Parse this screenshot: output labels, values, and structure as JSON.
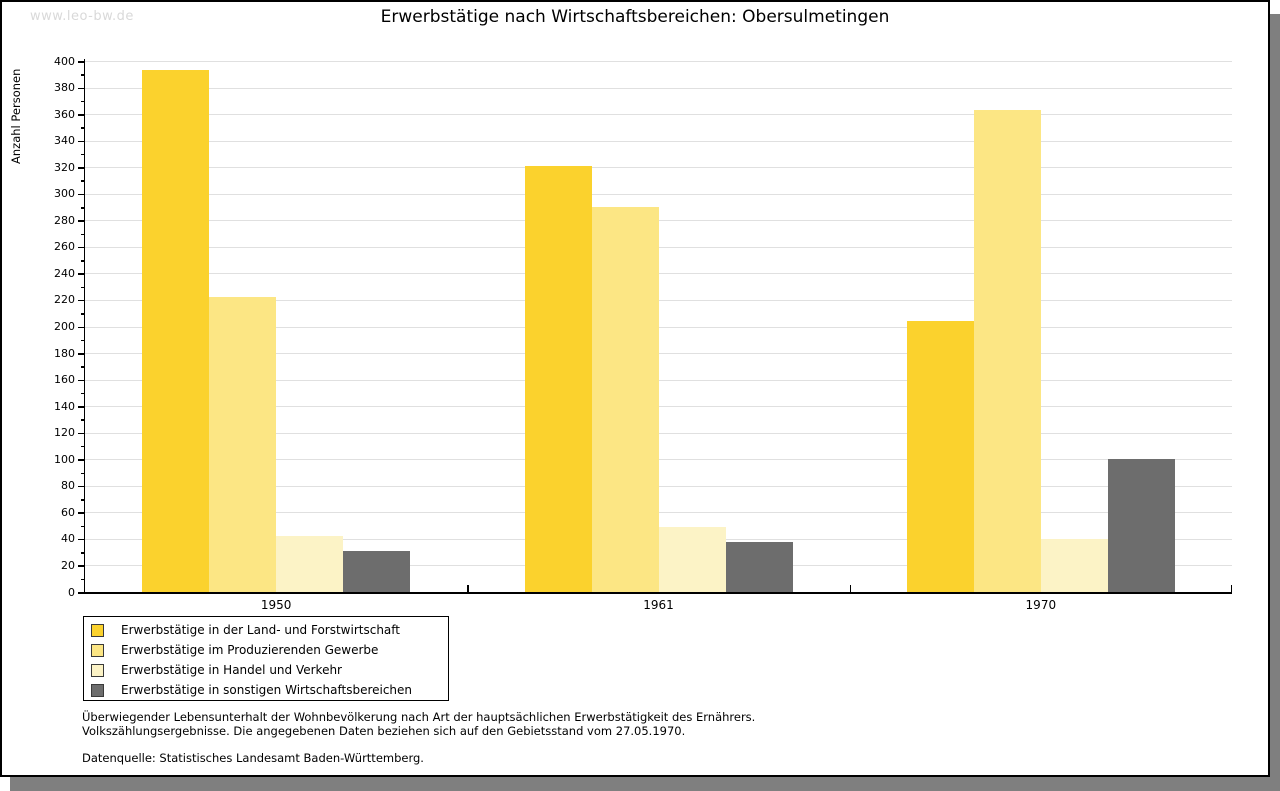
{
  "page": {
    "watermark": "www.leo-bw.de",
    "title": "Erwerbstätige nach Wirtschaftsbereichen: Obersulmetingen"
  },
  "chart_data": {
    "type": "bar",
    "title": "Erwerbstätige nach Wirtschaftsbereichen: Obersulmetingen",
    "ylabel": "Anzahl Personen",
    "xlabel": "",
    "categories": [
      "1950",
      "1961",
      "1970"
    ],
    "series": [
      {
        "name": "Erwerbstätige in der Land- und Forstwirtschaft",
        "color": "#FBD22D",
        "values": [
          393,
          321,
          204
        ]
      },
      {
        "name": "Erwerbstätige im Produzierenden Gewerbe",
        "color": "#FCE684",
        "values": [
          222,
          290,
          363
        ]
      },
      {
        "name": "Erwerbstätige in Handel und Verkehr",
        "color": "#FCF3C6",
        "values": [
          42,
          49,
          40
        ]
      },
      {
        "name": "Erwerbstätige in sonstigen Wirtschaftsbereichen",
        "color": "#6D6D6D",
        "values": [
          31,
          38,
          100
        ]
      }
    ],
    "ylim": [
      0,
      400
    ],
    "ytick_step": 20,
    "yminor_step": 10,
    "grid": "horizontal",
    "gridline_color": "#e0e0e0",
    "legend_position": "bottom-left"
  },
  "footnotes": {
    "line1": "Überwiegender Lebensunterhalt der Wohnbevölkerung nach Art der hauptsächlichen Erwerbstätigkeit des Ernährers.",
    "line2": "Volkszählungsergebnisse. Die angegebenen Daten beziehen sich auf den Gebietsstand vom 27.05.1970.",
    "source": "Datenquelle: Statistisches Landesamt Baden-Württemberg."
  }
}
